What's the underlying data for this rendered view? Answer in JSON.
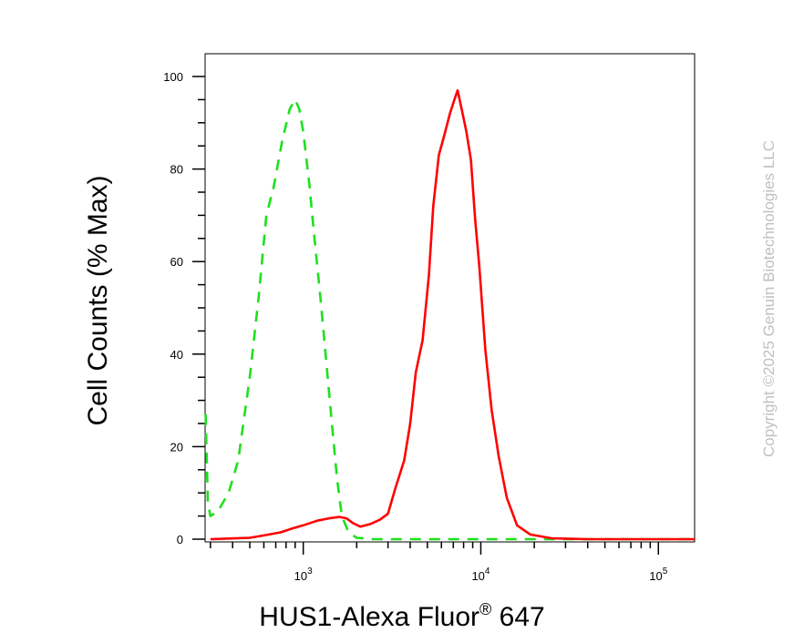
{
  "chart_data": {
    "type": "line",
    "xlabel": "HUS1-Alexa Fluor",
    "xlabel_superscript": "®",
    "xlabel_suffix": " 647",
    "ylabel": "Cell Counts (% Max)",
    "watermark": "Copyright ©2025 Genuin Biotechnologies LLC",
    "xscale": "log",
    "xlim": [
      280,
      160000
    ],
    "ylim": [
      0,
      100
    ],
    "y_ticks": [
      0,
      20,
      40,
      60,
      80,
      100
    ],
    "x_tick_labels": [
      {
        "base": "10",
        "exp": "3",
        "value": 1000
      },
      {
        "base": "10",
        "exp": "4",
        "value": 10000
      },
      {
        "base": "10",
        "exp": "5",
        "value": 100000
      }
    ],
    "grid": false,
    "legend": "none",
    "series": [
      {
        "style": "dashed",
        "color": "#1ee01e",
        "points": [
          [
            282,
            27
          ],
          [
            290,
            8
          ],
          [
            300,
            5
          ],
          [
            330,
            6
          ],
          [
            380,
            10
          ],
          [
            430,
            17
          ],
          [
            500,
            35
          ],
          [
            560,
            52
          ],
          [
            620,
            70
          ],
          [
            680,
            76
          ],
          [
            760,
            86
          ],
          [
            840,
            93
          ],
          [
            900,
            95
          ],
          [
            950,
            93
          ],
          [
            1000,
            88
          ],
          [
            1080,
            77
          ],
          [
            1150,
            66
          ],
          [
            1250,
            52
          ],
          [
            1350,
            38
          ],
          [
            1450,
            25
          ],
          [
            1550,
            13
          ],
          [
            1650,
            5
          ],
          [
            1800,
            1.5
          ],
          [
            2000,
            0.3
          ],
          [
            2500,
            0
          ],
          [
            5000,
            0
          ],
          [
            20000,
            0
          ],
          [
            160000,
            0
          ]
        ]
      },
      {
        "style": "solid",
        "color": "#ff0000",
        "points": [
          [
            300,
            0
          ],
          [
            500,
            0.3
          ],
          [
            600,
            0.8
          ],
          [
            750,
            1.5
          ],
          [
            850,
            2.2
          ],
          [
            1000,
            3
          ],
          [
            1200,
            4
          ],
          [
            1400,
            4.5
          ],
          [
            1600,
            4.8
          ],
          [
            1750,
            4.5
          ],
          [
            1900,
            3.5
          ],
          [
            2100,
            2.7
          ],
          [
            2400,
            3.3
          ],
          [
            2700,
            4.2
          ],
          [
            3000,
            5.5
          ],
          [
            3300,
            11
          ],
          [
            3700,
            17
          ],
          [
            4000,
            25
          ],
          [
            4300,
            36
          ],
          [
            4700,
            43
          ],
          [
            5100,
            57
          ],
          [
            5400,
            72
          ],
          [
            5800,
            83
          ],
          [
            6200,
            87
          ],
          [
            6700,
            92
          ],
          [
            7100,
            95
          ],
          [
            7400,
            97
          ],
          [
            7800,
            93
          ],
          [
            8300,
            88
          ],
          [
            8800,
            82
          ],
          [
            9300,
            69
          ],
          [
            9800,
            59
          ],
          [
            10600,
            41
          ],
          [
            11500,
            28
          ],
          [
            12600,
            18
          ],
          [
            14000,
            9
          ],
          [
            16000,
            3
          ],
          [
            19000,
            1
          ],
          [
            25000,
            0.2
          ],
          [
            40000,
            0
          ],
          [
            160000,
            0
          ]
        ]
      }
    ]
  }
}
